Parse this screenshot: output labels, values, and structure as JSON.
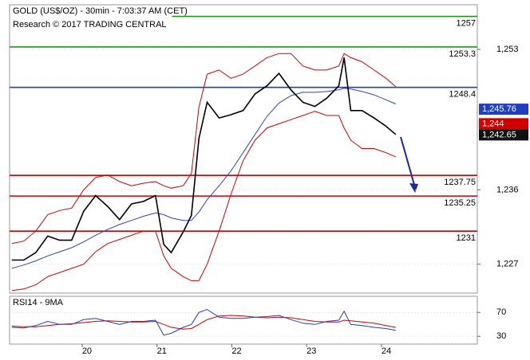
{
  "chart_data": [
    {
      "type": "line",
      "title": "GOLD (US$/OZ) - 30min - 7:03:37 AM (CET)",
      "subtitle": "Research © 2017 TRADING CENTRAL",
      "x": [
        19.06,
        19.22,
        19.38,
        19.54,
        19.7,
        19.86,
        20.02,
        20.18,
        20.34,
        20.5,
        20.66,
        20.82,
        20.98,
        21.09,
        21.19,
        21.35,
        21.46,
        21.56,
        21.67,
        21.83,
        21.99,
        22.15,
        22.31,
        22.47,
        22.63,
        22.79,
        22.95,
        23.11,
        23.27,
        23.43,
        23.5,
        23.59,
        23.74,
        23.9,
        24.06,
        24.19
      ],
      "series": [
        {
          "color": "#d00000",
          "values": [
            1229.5,
            1229.8,
            1231.0,
            1233.0,
            1233.5,
            1233.8,
            1236.0,
            1237.5,
            1237.8,
            1237.0,
            1236.5,
            1236.8,
            1237.0,
            1236.5,
            1236.2,
            1236.5,
            1238.0,
            1246.0,
            1250.0,
            1250.5,
            1249.5,
            1250.0,
            1251.0,
            1252.0,
            1252.5,
            1252.5,
            1251.0,
            1250.5,
            1250.5,
            1251.0,
            1252.5,
            1252.0,
            1251.5,
            1250.5,
            1249.5,
            1248.5
          ]
        },
        {
          "color": "#d00000",
          "values": [
            1223.8,
            1224.0,
            1224.5,
            1225.5,
            1226.0,
            1226.5,
            1227.0,
            1228.5,
            1229.5,
            1230.0,
            1230.5,
            1231.0,
            1231.0,
            1228.0,
            1226.5,
            1225.5,
            1225.0,
            1225.0,
            1227.0,
            1231.0,
            1235.5,
            1239.5,
            1242.0,
            1243.5,
            1244.0,
            1244.5,
            1245.0,
            1245.5,
            1245.0,
            1245.0,
            1243.5,
            1242.0,
            1241.0,
            1241.0,
            1240.5,
            1240.0
          ]
        },
        {
          "color": "#2a46c8",
          "values": [
            1226.5,
            1226.9,
            1227.4,
            1228.0,
            1228.5,
            1229.0,
            1229.7,
            1230.5,
            1231.2,
            1231.8,
            1232.3,
            1232.8,
            1233.2,
            1233.0,
            1232.6,
            1232.3,
            1232.3,
            1233.3,
            1234.8,
            1236.5,
            1238.3,
            1240.5,
            1242.7,
            1244.9,
            1246.5,
            1247.4,
            1247.8,
            1247.8,
            1247.9,
            1248.1,
            1248.3,
            1248.2,
            1247.9,
            1247.5,
            1246.9,
            1246.4
          ]
        },
        {
          "color": "#000000",
          "values": [
            1227.5,
            1227.5,
            1228.4,
            1230.4,
            1229.9,
            1229.9,
            1233.4,
            1235.3,
            1234.0,
            1232.4,
            1234.3,
            1234.6,
            1235.3,
            1229.4,
            1228.4,
            1230.9,
            1232.9,
            1242.2,
            1246.6,
            1244.7,
            1245.1,
            1245.6,
            1247.6,
            1248.6,
            1250.1,
            1248.1,
            1246.6,
            1246.1,
            1247.1,
            1248.6,
            1252.0,
            1245.6,
            1245.6,
            1244.7,
            1243.7,
            1242.7
          ]
        }
      ],
      "levels": [
        {
          "value": 1257,
          "color": "#1a9a1a"
        },
        {
          "value": 1253.3,
          "color": "#1a9a1a"
        },
        {
          "value": 1248.4,
          "color": "#1f3fbf"
        },
        {
          "value": 1237.75,
          "color": "#d00000"
        },
        {
          "value": 1235.25,
          "color": "#d00000"
        },
        {
          "value": 1231,
          "color": "#d00000"
        }
      ],
      "price_labels": [
        {
          "value": 1245.76,
          "label": "1,245.76",
          "color": "#1f3fbf"
        },
        {
          "value": 1244,
          "label": "1,244",
          "color": "#d00000"
        },
        {
          "value": 1242.65,
          "label": "1,242.65",
          "color": "#111111"
        }
      ],
      "xlim": [
        19.03,
        25.28
      ],
      "ylim": [
        1223.5,
        1258.4
      ],
      "yticks": [
        {
          "value": 1253,
          "label": "1,253"
        },
        {
          "value": 1236,
          "label": "1,236"
        },
        {
          "value": 1227,
          "label": "1,227"
        }
      ],
      "grid": true
    },
    {
      "type": "line",
      "title": "RSI14 - 9MA",
      "x": [
        19.06,
        19.22,
        19.38,
        19.54,
        19.7,
        19.86,
        20.02,
        20.18,
        20.34,
        20.5,
        20.66,
        20.82,
        20.98,
        21.09,
        21.19,
        21.35,
        21.46,
        21.56,
        21.67,
        21.83,
        21.99,
        22.15,
        22.31,
        22.47,
        22.63,
        22.79,
        22.95,
        23.11,
        23.27,
        23.43,
        23.5,
        23.59,
        23.74,
        23.9,
        24.06,
        24.19
      ],
      "series": [
        {
          "color": "#d00000",
          "values": [
            47,
            46,
            46,
            48,
            50,
            51,
            53,
            55,
            56,
            55,
            54,
            54,
            55,
            50,
            45,
            42,
            43,
            50,
            58,
            64,
            65,
            64,
            62,
            61,
            62,
            61,
            58,
            55,
            54,
            54,
            57,
            56,
            54,
            52,
            48,
            45
          ]
        },
        {
          "color": "#1f3fbf",
          "values": [
            45,
            44,
            48,
            55,
            50,
            50,
            58,
            60,
            55,
            50,
            55,
            55,
            57,
            32,
            35,
            45,
            50,
            70,
            75,
            62,
            60,
            60,
            62,
            63,
            65,
            58,
            52,
            50,
            55,
            57,
            72,
            50,
            48,
            45,
            43,
            40
          ]
        }
      ],
      "xlim": [
        19.03,
        25.28
      ],
      "ylim": [
        17,
        97
      ],
      "yticks": [
        70,
        30
      ],
      "xticks": [
        20,
        21,
        22,
        23,
        24
      ],
      "grid": true
    }
  ]
}
